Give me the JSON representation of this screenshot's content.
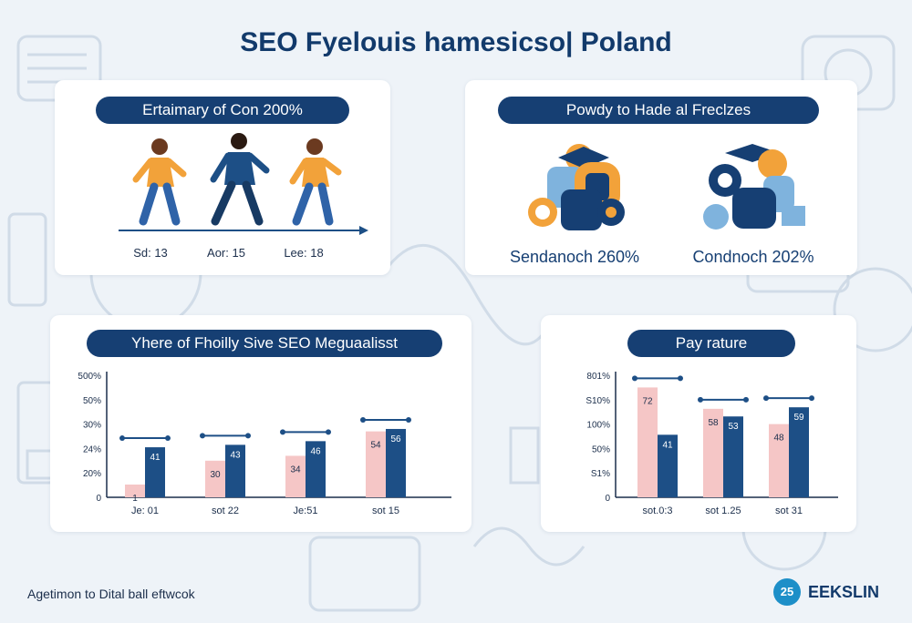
{
  "page": {
    "title": "SEO Fyelouis hamesicso| Poland",
    "footer_left": "Agetimon to Dital ball eftwcok",
    "brand": {
      "badge": "25",
      "name": "EEKSLIN"
    }
  },
  "panel_top_left": {
    "heading": "Ertaimary of Con 200%",
    "figures": [
      {
        "icon": "walking-person-icon",
        "label": "Sd: 13",
        "color": "#f2a23a"
      },
      {
        "icon": "walking-person-icon",
        "label": "Aor: 15",
        "color": "#1d4f86"
      },
      {
        "icon": "walking-person-icon",
        "label": "Lee: 18",
        "color": "#f2a23a"
      }
    ]
  },
  "panel_top_right": {
    "heading": "Powdy to Hade al Freclzes",
    "groups": [
      {
        "icon": "graduate-cluster-icon",
        "label": "Sendanoch 260%"
      },
      {
        "icon": "gear-cluster-icon",
        "label": "Condnoch 202%"
      }
    ]
  },
  "colors": {
    "series_light": "#f5c6c6",
    "series_dark": "#1d4f86",
    "pill": "#163f73"
  },
  "chart_data": [
    {
      "type": "bar",
      "title": "Yhere of Fhoilly Sive SEO Meguaalisst",
      "categories": [
        "Je: 01",
        "sot 22",
        "Je:51",
        "sot 15"
      ],
      "yticks": [
        "0",
        "20%",
        "24%",
        "30%",
        "50%",
        "500%"
      ],
      "series": [
        {
          "values": [
            1,
            30,
            34,
            54
          ],
          "labels": [
            "1",
            "30",
            "34",
            "54"
          ]
        },
        {
          "values": [
            41,
            43,
            46,
            56
          ],
          "labels": [
            "41",
            "43",
            "46",
            "56"
          ]
        }
      ]
    },
    {
      "type": "bar",
      "title": "Pay rature",
      "categories": [
        "sot.0:3",
        "sot 1.25",
        "sot 31"
      ],
      "yticks": [
        "0",
        "S1%",
        "50%",
        "100%",
        "S10%",
        "801%"
      ],
      "series": [
        {
          "values": [
            72,
            58,
            48
          ],
          "labels": [
            "72",
            "58",
            "48"
          ]
        },
        {
          "values": [
            41,
            53,
            59
          ],
          "labels": [
            "41",
            "53",
            "59"
          ]
        }
      ]
    }
  ]
}
